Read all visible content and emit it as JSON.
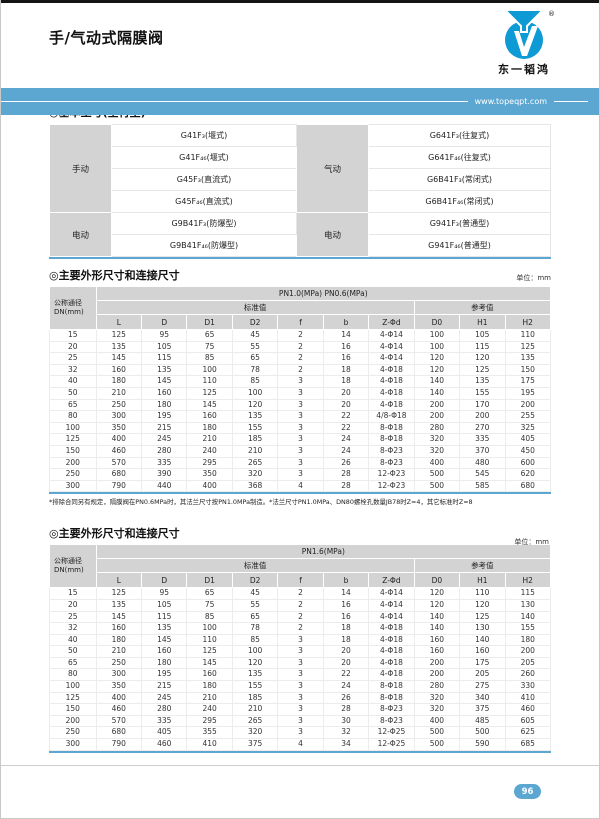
{
  "page": {
    "title": "手/气动式隔膜阀",
    "page_number": "96"
  },
  "brand": {
    "name": "东一韬鸿",
    "registered": "®",
    "website": "www.topeqpt.com",
    "logo_color": "#0e9bd5",
    "banner_color": "#5ba7d1"
  },
  "basic": {
    "title": "◎基本型号(全衬里)",
    "left": {
      "groups": [
        {
          "label": "手动",
          "models": [
            "G41F₃(堰式)",
            "G41F₄₆(堰式)",
            "G45F₃(直流式)",
            "G45F₄₆(直流式)"
          ]
        },
        {
          "label": "电动",
          "models": [
            "G9B41F₃(防爆型)",
            "G9B41F₄₆(防爆型)"
          ]
        }
      ]
    },
    "right": {
      "groups": [
        {
          "label": "气动",
          "models": [
            "G641F₃(往复式)",
            "G641F₄₆(往复式)",
            "G6B41F₃(常闭式)",
            "G6B41F₄₆(常闭式)"
          ]
        },
        {
          "label": "电动",
          "models": [
            "G941F₃(普通型)",
            "G941F₄₆(普通型)"
          ]
        }
      ]
    }
  },
  "dim1": {
    "title": "◎主要外形尺寸和连接尺寸",
    "unit": "单位：mm",
    "pressure": "PN1.0(MPa) PN0.6(MPa)",
    "dn_label": "公称通径\nDN(mm)",
    "std_label": "标准值",
    "ref_label": "参考值",
    "columns": [
      "L",
      "D",
      "D1",
      "D2",
      "f",
      "b",
      "Z-Φd",
      "D0",
      "H1",
      "H2"
    ],
    "rows": [
      [
        "15",
        "125",
        "95",
        "65",
        "45",
        "2",
        "14",
        "4-Φ14",
        "100",
        "105",
        "110"
      ],
      [
        "20",
        "135",
        "105",
        "75",
        "55",
        "2",
        "16",
        "4-Φ14",
        "100",
        "115",
        "125"
      ],
      [
        "25",
        "145",
        "115",
        "85",
        "65",
        "2",
        "16",
        "4-Φ14",
        "120",
        "120",
        "135"
      ],
      [
        "32",
        "160",
        "135",
        "100",
        "78",
        "2",
        "18",
        "4-Φ18",
        "120",
        "125",
        "150"
      ],
      [
        "40",
        "180",
        "145",
        "110",
        "85",
        "3",
        "18",
        "4-Φ18",
        "140",
        "135",
        "175"
      ],
      [
        "50",
        "210",
        "160",
        "125",
        "100",
        "3",
        "20",
        "4-Φ18",
        "140",
        "155",
        "195"
      ],
      [
        "65",
        "250",
        "180",
        "145",
        "120",
        "3",
        "20",
        "4-Φ18",
        "200",
        "170",
        "200"
      ],
      [
        "80",
        "300",
        "195",
        "160",
        "135",
        "3",
        "22",
        "4/8-Φ18",
        "200",
        "200",
        "255"
      ],
      [
        "100",
        "350",
        "215",
        "180",
        "155",
        "3",
        "22",
        "8-Φ18",
        "280",
        "270",
        "325"
      ],
      [
        "125",
        "400",
        "245",
        "210",
        "185",
        "3",
        "24",
        "8-Φ18",
        "320",
        "335",
        "405"
      ],
      [
        "150",
        "460",
        "280",
        "240",
        "210",
        "3",
        "24",
        "8-Φ23",
        "320",
        "370",
        "450"
      ],
      [
        "200",
        "570",
        "335",
        "295",
        "265",
        "3",
        "26",
        "8-Φ23",
        "400",
        "480",
        "600"
      ],
      [
        "250",
        "680",
        "390",
        "350",
        "320",
        "3",
        "28",
        "12-Φ23",
        "500",
        "545",
        "620"
      ],
      [
        "300",
        "790",
        "440",
        "400",
        "368",
        "4",
        "28",
        "12-Φ23",
        "500",
        "585",
        "680"
      ]
    ],
    "footnote": "*排除合同另有规定，隔膜阀在PN0.6MPa时，其法兰尺寸按PN1.0MPa制造。*法兰尺寸PN1.0MPa、DN80螺栓孔数量JB78时Z=4，其它标准时Z=8"
  },
  "dim2": {
    "title": "◎主要外形尺寸和连接尺寸",
    "unit": "单位：mm",
    "pressure": "PN1.6(MPa)",
    "dn_label": "公称通径\nDN(mm)",
    "std_label": "标准值",
    "ref_label": "参考值",
    "columns": [
      "L",
      "D",
      "D1",
      "D2",
      "f",
      "b",
      "Z-Φd",
      "D0",
      "H1",
      "H2"
    ],
    "rows": [
      [
        "15",
        "125",
        "95",
        "65",
        "45",
        "2",
        "14",
        "4-Φ14",
        "120",
        "110",
        "115"
      ],
      [
        "20",
        "135",
        "105",
        "75",
        "55",
        "2",
        "16",
        "4-Φ14",
        "120",
        "120",
        "130"
      ],
      [
        "25",
        "145",
        "115",
        "85",
        "65",
        "2",
        "16",
        "4-Φ14",
        "140",
        "125",
        "140"
      ],
      [
        "32",
        "160",
        "135",
        "100",
        "78",
        "2",
        "18",
        "4-Φ18",
        "140",
        "130",
        "155"
      ],
      [
        "40",
        "180",
        "145",
        "110",
        "85",
        "3",
        "18",
        "4-Φ18",
        "160",
        "140",
        "180"
      ],
      [
        "50",
        "210",
        "160",
        "125",
        "100",
        "3",
        "20",
        "4-Φ18",
        "160",
        "160",
        "200"
      ],
      [
        "65",
        "250",
        "180",
        "145",
        "120",
        "3",
        "20",
        "4-Φ18",
        "200",
        "175",
        "205"
      ],
      [
        "80",
        "300",
        "195",
        "160",
        "135",
        "3",
        "22",
        "4-Φ18",
        "200",
        "205",
        "260"
      ],
      [
        "100",
        "350",
        "215",
        "180",
        "155",
        "3",
        "24",
        "8-Φ18",
        "280",
        "275",
        "330"
      ],
      [
        "125",
        "400",
        "245",
        "210",
        "185",
        "3",
        "26",
        "8-Φ18",
        "320",
        "340",
        "410"
      ],
      [
        "150",
        "460",
        "280",
        "240",
        "210",
        "3",
        "28",
        "8-Φ23",
        "320",
        "375",
        "460"
      ],
      [
        "200",
        "570",
        "335",
        "295",
        "265",
        "3",
        "30",
        "8-Φ23",
        "400",
        "485",
        "605"
      ],
      [
        "250",
        "680",
        "405",
        "355",
        "320",
        "3",
        "32",
        "12-Φ25",
        "500",
        "500",
        "625"
      ],
      [
        "300",
        "790",
        "460",
        "410",
        "375",
        "4",
        "34",
        "12-Φ25",
        "500",
        "590",
        "685"
      ]
    ]
  }
}
